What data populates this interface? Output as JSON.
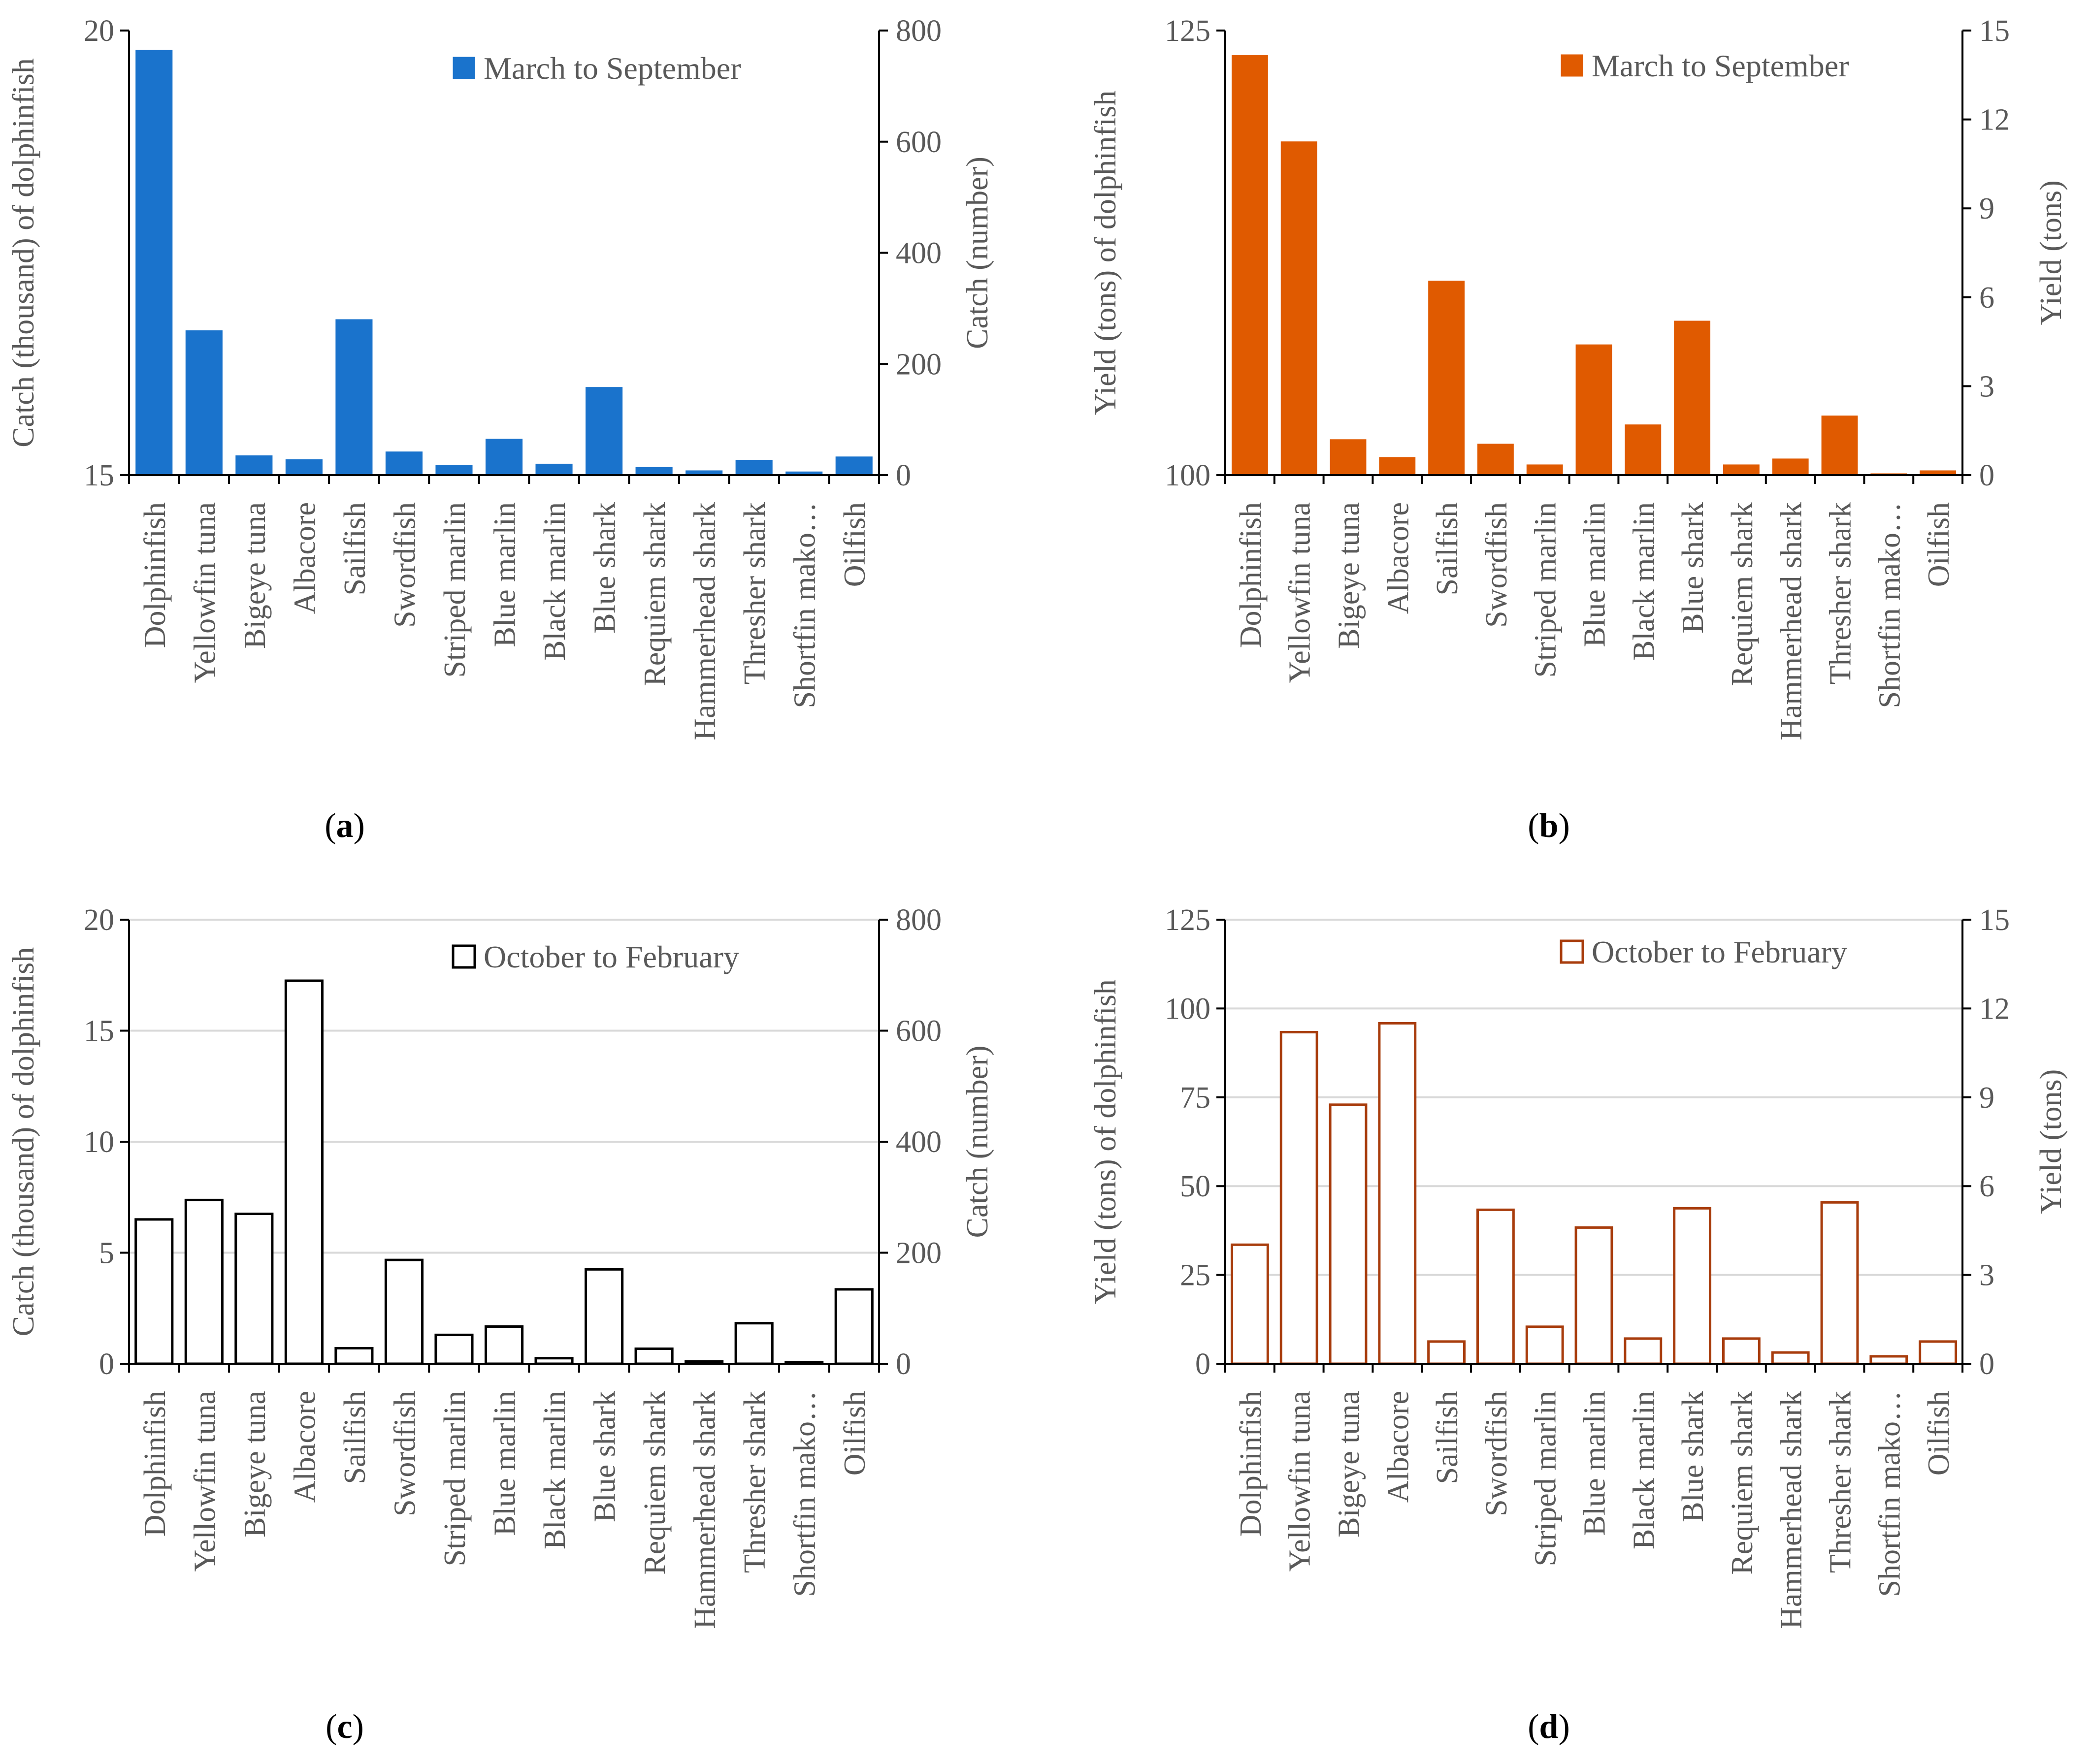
{
  "chart_data": [
    {
      "id": "a",
      "panel_label": "a",
      "type": "bar",
      "style": "filled",
      "series_name": "March to September",
      "categories": [
        "Dolphinfish",
        "Yellowfin tuna",
        "Bigeye tuna",
        "Albacore",
        "Sailfish",
        "Swordfish",
        "Striped marlin",
        "Blue marlin",
        "Black marlin",
        "Blue shark",
        "Requiem shark",
        "Hammerhead shark",
        "Thresher shark",
        "Shortfin mako…",
        "Oilfish"
      ],
      "primary_axis": {
        "label": "Catch (thousand) of dolphinfish",
        "ylim": [
          15,
          20
        ],
        "ticks": [
          15,
          20
        ],
        "tick_labels": [
          "15",
          "20"
        ],
        "grid": false
      },
      "secondary_axis": {
        "label": "Catch (number)",
        "ylim": [
          0,
          800
        ],
        "ticks": [
          0,
          200,
          400,
          600,
          800
        ],
        "tick_labels": [
          "0",
          "200",
          "400",
          "600",
          "800"
        ]
      },
      "values": [
        {
          "axis": "primary",
          "value": 19.78
        },
        {
          "axis": "secondary",
          "value": 260
        },
        {
          "axis": "secondary",
          "value": 35
        },
        {
          "axis": "secondary",
          "value": 28
        },
        {
          "axis": "secondary",
          "value": 280
        },
        {
          "axis": "secondary",
          "value": 42
        },
        {
          "axis": "secondary",
          "value": 18
        },
        {
          "axis": "secondary",
          "value": 65
        },
        {
          "axis": "secondary",
          "value": 20
        },
        {
          "axis": "secondary",
          "value": 158
        },
        {
          "axis": "secondary",
          "value": 14
        },
        {
          "axis": "secondary",
          "value": 8
        },
        {
          "axis": "secondary",
          "value": 27
        },
        {
          "axis": "secondary",
          "value": 6
        },
        {
          "axis": "secondary",
          "value": 33
        }
      ],
      "colors": {
        "fill": "#1a73cc",
        "stroke": "#1a73cc"
      }
    },
    {
      "id": "b",
      "panel_label": "b",
      "type": "bar",
      "style": "filled",
      "series_name": "March to September",
      "categories": [
        "Dolphinfish",
        "Yellowfin tuna",
        "Bigeye tuna",
        "Albacore",
        "Sailfish",
        "Swordfish",
        "Striped marlin",
        "Blue marlin",
        "Black marlin",
        "Blue shark",
        "Requiem shark",
        "Hammerhead shark",
        "Thresher shark",
        "Shortfin mako…",
        "Oilfish"
      ],
      "primary_axis": {
        "label": "Yield (tons) of dolphinfish",
        "ylim": [
          100,
          125
        ],
        "ticks": [
          100,
          125
        ],
        "tick_labels": [
          "100",
          "125"
        ],
        "grid": false
      },
      "secondary_axis": {
        "label": "Yield (tons)",
        "ylim": [
          0,
          15
        ],
        "ticks": [
          0,
          3,
          6,
          9,
          12,
          15
        ],
        "tick_labels": [
          "0",
          "3",
          "6",
          "9",
          "12",
          "15"
        ]
      },
      "values": [
        {
          "axis": "primary",
          "value": 123.6
        },
        {
          "axis": "secondary",
          "value": 11.25
        },
        {
          "axis": "secondary",
          "value": 1.2
        },
        {
          "axis": "secondary",
          "value": 0.6
        },
        {
          "axis": "secondary",
          "value": 6.55
        },
        {
          "axis": "secondary",
          "value": 1.05
        },
        {
          "axis": "secondary",
          "value": 0.35
        },
        {
          "axis": "secondary",
          "value": 4.4
        },
        {
          "axis": "secondary",
          "value": 1.7
        },
        {
          "axis": "secondary",
          "value": 5.2
        },
        {
          "axis": "secondary",
          "value": 0.35
        },
        {
          "axis": "secondary",
          "value": 0.55
        },
        {
          "axis": "secondary",
          "value": 2.0
        },
        {
          "axis": "secondary",
          "value": 0.05
        },
        {
          "axis": "secondary",
          "value": 0.15
        }
      ],
      "colors": {
        "fill": "#e05a00",
        "stroke": "#e05a00"
      }
    },
    {
      "id": "c",
      "panel_label": "c",
      "type": "bar",
      "style": "outline",
      "series_name": "October to February",
      "categories": [
        "Dolphinfish",
        "Yellowfin tuna",
        "Bigeye tuna",
        "Albacore",
        "Sailfish",
        "Swordfish",
        "Striped marlin",
        "Blue marlin",
        "Black marlin",
        "Blue shark",
        "Requiem shark",
        "Hammerhead shark",
        "Thresher shark",
        "Shortfin mako…",
        "Oilfish"
      ],
      "primary_axis": {
        "label": "Catch (thousand) of dolphinfish",
        "ylim": [
          0,
          20
        ],
        "ticks": [
          0,
          5,
          10,
          15,
          20
        ],
        "tick_labels": [
          "0",
          "5",
          "10",
          "15",
          "20"
        ],
        "grid": true
      },
      "secondary_axis": {
        "label": "Catch (number)",
        "ylim": [
          0,
          800
        ],
        "ticks": [
          0,
          200,
          400,
          600,
          800
        ],
        "tick_labels": [
          "0",
          "200",
          "400",
          "600",
          "800"
        ]
      },
      "values": [
        {
          "axis": "primary",
          "value": 6.5
        },
        {
          "axis": "secondary",
          "value": 295
        },
        {
          "axis": "secondary",
          "value": 270
        },
        {
          "axis": "secondary",
          "value": 690
        },
        {
          "axis": "secondary",
          "value": 28
        },
        {
          "axis": "secondary",
          "value": 187
        },
        {
          "axis": "secondary",
          "value": 52
        },
        {
          "axis": "secondary",
          "value": 67
        },
        {
          "axis": "secondary",
          "value": 10
        },
        {
          "axis": "secondary",
          "value": 170
        },
        {
          "axis": "secondary",
          "value": 27
        },
        {
          "axis": "secondary",
          "value": 4
        },
        {
          "axis": "secondary",
          "value": 73
        },
        {
          "axis": "secondary",
          "value": 3
        },
        {
          "axis": "secondary",
          "value": 134
        }
      ],
      "colors": {
        "fill": "#ffffff",
        "stroke": "#000000"
      }
    },
    {
      "id": "d",
      "panel_label": "d",
      "type": "bar",
      "style": "outline",
      "series_name": "October to February",
      "categories": [
        "Dolphinfish",
        "Yellowfin tuna",
        "Bigeye tuna",
        "Albacore",
        "Sailfish",
        "Swordfish",
        "Striped marlin",
        "Blue marlin",
        "Black marlin",
        "Blue shark",
        "Requiem shark",
        "Hammerhead shark",
        "Thresher shark",
        "Shortfin mako…",
        "Oilfish"
      ],
      "primary_axis": {
        "label": "Yield (tons) of dolphinfish",
        "ylim": [
          0,
          125
        ],
        "ticks": [
          0,
          25,
          50,
          75,
          100,
          125
        ],
        "tick_labels": [
          "0",
          "25",
          "50",
          "75",
          "100",
          "125"
        ],
        "grid": true
      },
      "secondary_axis": {
        "label": "Yield (tons)",
        "ylim": [
          0,
          15
        ],
        "ticks": [
          0,
          3,
          6,
          9,
          12,
          15
        ],
        "tick_labels": [
          "0",
          "3",
          "6",
          "9",
          "12",
          "15"
        ]
      },
      "values": [
        {
          "axis": "primary",
          "value": 33.5
        },
        {
          "axis": "secondary",
          "value": 11.2
        },
        {
          "axis": "secondary",
          "value": 8.75
        },
        {
          "axis": "secondary",
          "value": 11.5
        },
        {
          "axis": "secondary",
          "value": 0.75
        },
        {
          "axis": "secondary",
          "value": 5.2
        },
        {
          "axis": "secondary",
          "value": 1.25
        },
        {
          "axis": "secondary",
          "value": 4.6
        },
        {
          "axis": "secondary",
          "value": 0.85
        },
        {
          "axis": "secondary",
          "value": 5.25
        },
        {
          "axis": "secondary",
          "value": 0.85
        },
        {
          "axis": "secondary",
          "value": 0.38
        },
        {
          "axis": "secondary",
          "value": 5.45
        },
        {
          "axis": "secondary",
          "value": 0.25
        },
        {
          "axis": "secondary",
          "value": 0.75
        }
      ],
      "colors": {
        "fill": "#ffffff",
        "stroke": "#a83c0c"
      }
    }
  ]
}
